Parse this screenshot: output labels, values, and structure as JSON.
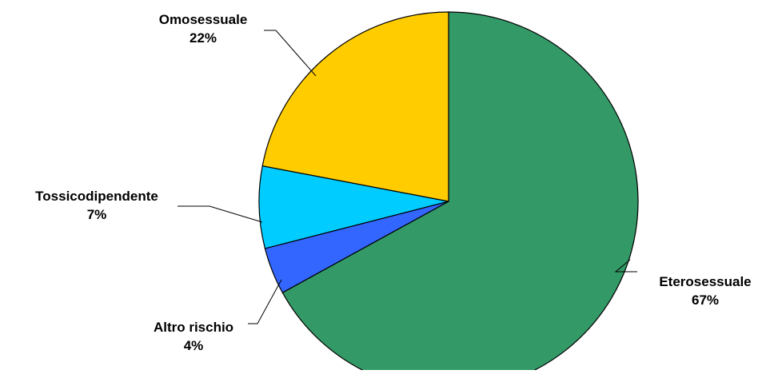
{
  "chart_data": {
    "type": "pie",
    "start_direction": "top",
    "slices": [
      {
        "label": "Eterosessuale",
        "value_label": "67%",
        "value": 67,
        "color": "#339966"
      },
      {
        "label": "Altro rischio",
        "value_label": "4%",
        "value": 4,
        "color": "#3366FF"
      },
      {
        "label": "Tossicodipendente",
        "value_label": "7%",
        "value": 7,
        "color": "#00CCFF"
      },
      {
        "label": "Omosessuale",
        "value_label": "22%",
        "value": 22,
        "color": "#FFCC00"
      }
    ]
  }
}
